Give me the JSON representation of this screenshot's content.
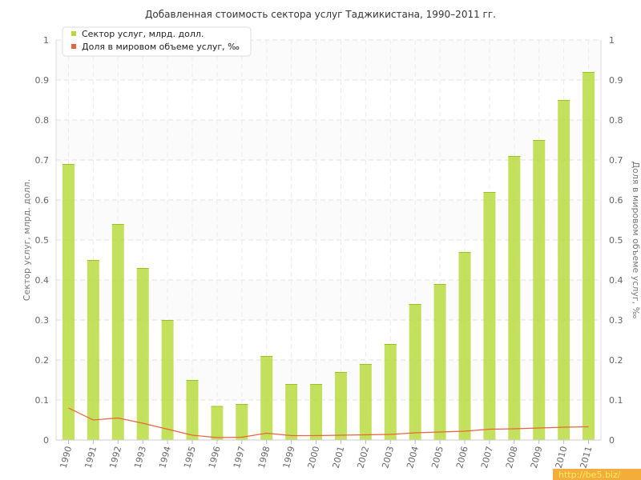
{
  "chart_data": {
    "type": "bar",
    "title": "Добавленная стоимость сектора услуг Таджикистана, 1990–2011 гг.",
    "ylabel": "Сектор услуг, млрд. долл.",
    "y2label": "Доля в мировом объеме услуг, ‰",
    "ylim": [
      0,
      1
    ],
    "y2lim": [
      0,
      1
    ],
    "yticks": [
      "0",
      "0.1",
      "0.2",
      "0.3",
      "0.4",
      "0.5",
      "0.6",
      "0.7",
      "0.8",
      "0.9",
      "1"
    ],
    "grid": true,
    "legend_position": "top-left",
    "categories": [
      "1990",
      "1991",
      "1992",
      "1993",
      "1994",
      "1995",
      "1996",
      "1997",
      "1998",
      "1999",
      "2000",
      "2001",
      "2002",
      "2003",
      "2004",
      "2005",
      "2006",
      "2007",
      "2008",
      "2009",
      "2010",
      "2011"
    ],
    "series": [
      {
        "name": "Сектор услуг, млрд. долл.",
        "type": "bar",
        "axis": "left",
        "color": "#b5d936",
        "values": [
          0.69,
          0.45,
          0.54,
          0.43,
          0.3,
          0.15,
          0.085,
          0.09,
          0.21,
          0.14,
          0.14,
          0.17,
          0.19,
          0.24,
          0.34,
          0.39,
          0.47,
          0.62,
          0.71,
          0.75,
          0.85,
          0.92
        ]
      },
      {
        "name": "Доля в мировом объеме услуг, ‰",
        "type": "line",
        "axis": "right",
        "color": "#e8643c",
        "values": [
          0.08,
          0.05,
          0.055,
          0.042,
          0.027,
          0.012,
          0.006,
          0.007,
          0.017,
          0.011,
          0.011,
          0.012,
          0.013,
          0.014,
          0.018,
          0.02,
          0.022,
          0.027,
          0.028,
          0.03,
          0.032,
          0.033
        ]
      }
    ]
  },
  "watermark": "http://be5.biz/"
}
